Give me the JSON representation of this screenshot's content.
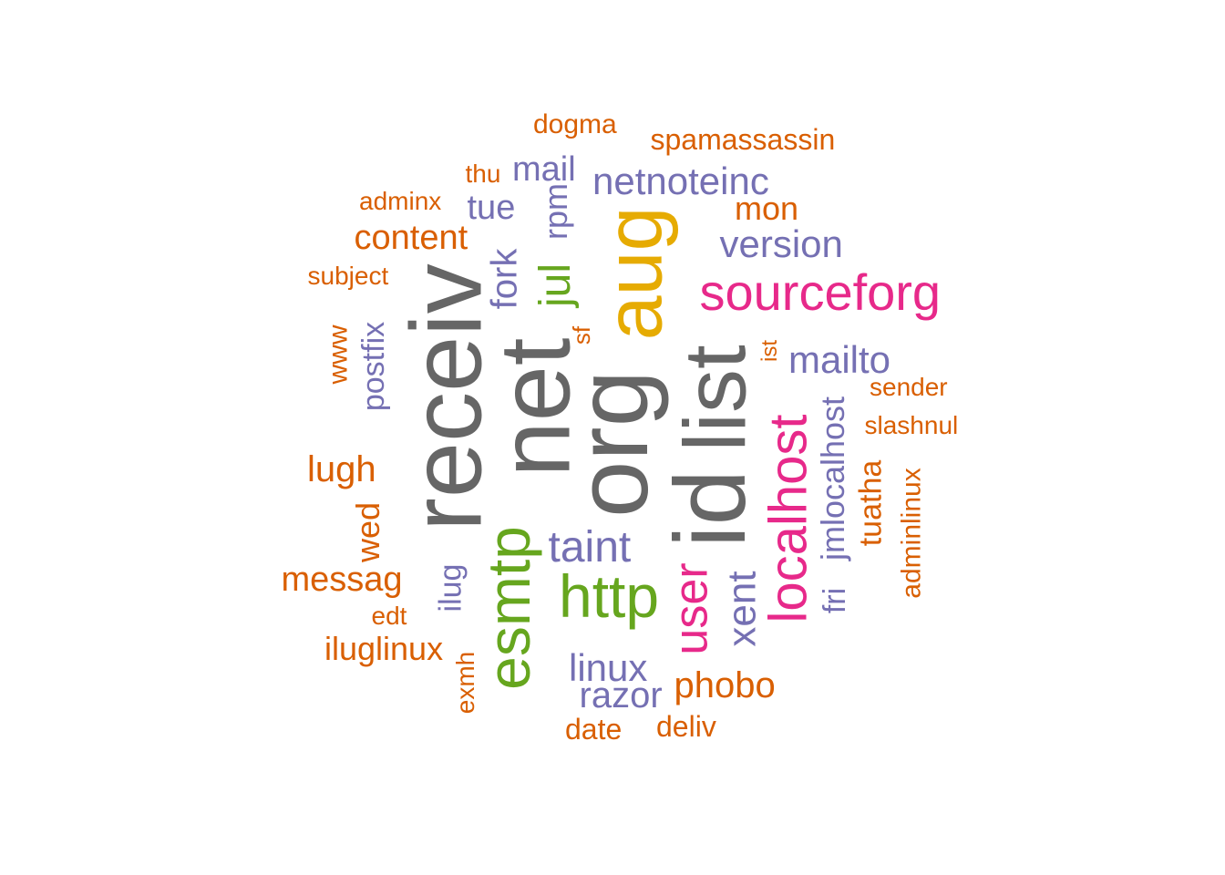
{
  "colors": {
    "gray": "#666666",
    "orange": "#d95f02",
    "purple": "#7570b3",
    "pink": "#e7298a",
    "green": "#66a61e",
    "gold": "#e6ab02"
  },
  "words": [
    {
      "text": "dogma",
      "color": "orange"
    },
    {
      "text": "spamassassin",
      "color": "orange"
    },
    {
      "text": "thu",
      "color": "orange"
    },
    {
      "text": "mail",
      "color": "purple"
    },
    {
      "text": "netnoteinc",
      "color": "purple"
    },
    {
      "text": "adminx",
      "color": "orange"
    },
    {
      "text": "tue",
      "color": "purple"
    },
    {
      "text": "rpm",
      "color": "purple"
    },
    {
      "text": "mon",
      "color": "orange"
    },
    {
      "text": "content",
      "color": "orange"
    },
    {
      "text": "version",
      "color": "purple"
    },
    {
      "text": "aug",
      "color": "gold"
    },
    {
      "text": "subject",
      "color": "orange"
    },
    {
      "text": "fork",
      "color": "purple"
    },
    {
      "text": "jul",
      "color": "green"
    },
    {
      "text": "sourceforg",
      "color": "pink"
    },
    {
      "text": "receiv",
      "color": "gray"
    },
    {
      "text": "net",
      "color": "gray"
    },
    {
      "text": "postfix",
      "color": "purple"
    },
    {
      "text": "www",
      "color": "orange"
    },
    {
      "text": "sf",
      "color": "orange"
    },
    {
      "text": "list",
      "color": "gray"
    },
    {
      "text": "ist",
      "color": "orange"
    },
    {
      "text": "mailto",
      "color": "purple"
    },
    {
      "text": "org",
      "color": "gray"
    },
    {
      "text": "id",
      "color": "gray"
    },
    {
      "text": "sender",
      "color": "orange"
    },
    {
      "text": "localhost",
      "color": "pink"
    },
    {
      "text": "jmlocalhost",
      "color": "purple"
    },
    {
      "text": "slashnul",
      "color": "orange"
    },
    {
      "text": "lugh",
      "color": "orange"
    },
    {
      "text": "tuatha",
      "color": "orange"
    },
    {
      "text": "adminlinux",
      "color": "orange"
    },
    {
      "text": "wed",
      "color": "orange"
    },
    {
      "text": "taint",
      "color": "purple"
    },
    {
      "text": "esmtp",
      "color": "green"
    },
    {
      "text": "messag",
      "color": "orange"
    },
    {
      "text": "http",
      "color": "green"
    },
    {
      "text": "user",
      "color": "pink"
    },
    {
      "text": "xent",
      "color": "purple"
    },
    {
      "text": "fri",
      "color": "purple"
    },
    {
      "text": "ilug",
      "color": "purple"
    },
    {
      "text": "edt",
      "color": "orange"
    },
    {
      "text": "iluglinux",
      "color": "orange"
    },
    {
      "text": "exmh",
      "color": "orange"
    },
    {
      "text": "linux",
      "color": "purple"
    },
    {
      "text": "phobo",
      "color": "orange"
    },
    {
      "text": "razor",
      "color": "purple"
    },
    {
      "text": "date",
      "color": "orange"
    },
    {
      "text": "deliv",
      "color": "orange"
    }
  ]
}
